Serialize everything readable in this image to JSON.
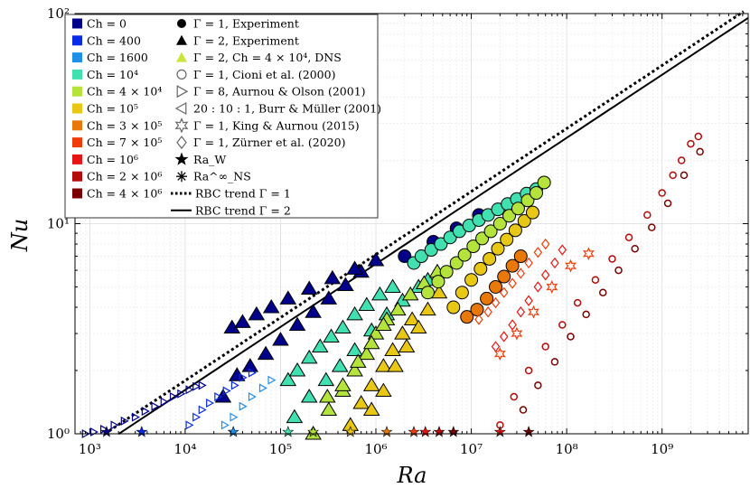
{
  "chart_data": {
    "type": "scatter",
    "xlabel": "Ra",
    "ylabel": "Nu",
    "xscale": "log",
    "yscale": "log",
    "xlim": [
      700,
      8000000000
    ],
    "ylim": [
      1,
      100
    ],
    "x_ticks": [
      1000,
      10000,
      100000,
      1000000,
      10000000,
      100000000,
      1000000000
    ],
    "x_tick_labels": [
      "10³",
      "10⁴",
      "10⁵",
      "10⁶",
      "10⁷",
      "10⁸",
      "10⁹"
    ],
    "y_ticks": [
      1,
      10,
      100
    ],
    "y_tick_labels": [
      "10⁰",
      "10¹",
      "10²"
    ],
    "grid": true,
    "legend_position": "top-left",
    "legend_colors": [
      {
        "label": "Ch = 0",
        "color": "#00008b"
      },
      {
        "label": "Ch = 400",
        "color": "#0a2be6"
      },
      {
        "label": "Ch = 1600",
        "color": "#1e90e8"
      },
      {
        "label": "Ch = 10⁴",
        "color": "#40e0b0"
      },
      {
        "label": "Ch = 4 × 10⁴",
        "color": "#b4e43c"
      },
      {
        "label": "Ch = 10⁵",
        "color": "#e8c814"
      },
      {
        "label": "Ch = 3 × 10⁵",
        "color": "#e8780a"
      },
      {
        "label": "Ch = 7 × 10⁵",
        "color": "#f03c0a"
      },
      {
        "label": "Ch = 10⁶",
        "color": "#e61414"
      },
      {
        "label": "Ch = 2 × 10⁶",
        "color": "#b40a0a"
      },
      {
        "label": "Ch = 4 × 10⁶",
        "color": "#7a0000"
      }
    ],
    "legend_symbols": [
      {
        "label": "Γ = 1, Experiment",
        "marker": "circle-filled"
      },
      {
        "label": "Γ = 2, Experiment",
        "marker": "triangle-filled"
      },
      {
        "label": "Γ = 2, Ch = 4 × 10⁴, DNS",
        "marker": "triangle-yellowgreen"
      },
      {
        "label": "Γ = 1, Cioni et al. (2000)",
        "marker": "circle-open"
      },
      {
        "label": "Γ = 8, Aurnou & Olson (2001)",
        "marker": "triangle-right-open"
      },
      {
        "label": "20 : 10 : 1, Burr & Müller (2001)",
        "marker": "triangle-left-open"
      },
      {
        "label": "Γ = 1, King & Aurnou (2015)",
        "marker": "hexagram-open"
      },
      {
        "label": "Γ = 1, Zürner et al. (2020)",
        "marker": "diamond-open"
      },
      {
        "label": "Ra_W",
        "marker": "star-filled"
      },
      {
        "label": "Ra^∞_NS",
        "marker": "asterisk"
      },
      {
        "label": "RBC trend Γ = 1",
        "marker": "dotted-line"
      },
      {
        "label": "RBC trend Γ = 2",
        "marker": "solid-line"
      }
    ],
    "series": [
      {
        "ci": 0,
        "marker": "tri",
        "size": 8,
        "x": [
          25000,
          35000,
          48000,
          70000,
          100000,
          150000,
          220000,
          320000,
          480000,
          700000
        ],
        "y": [
          1.5,
          1.9,
          2.1,
          2.4,
          2.8,
          3.3,
          3.8,
          4.4,
          5.1,
          5.9
        ]
      },
      {
        "ci": 3,
        "marker": "tri",
        "size": 8,
        "x": [
          140000,
          200000,
          300000,
          420000,
          600000,
          900000,
          1300000,
          1900000,
          2800000,
          3500000
        ],
        "y": [
          1.2,
          1.5,
          1.8,
          2.1,
          2.5,
          3.1,
          3.7,
          4.3,
          5.0,
          5.4
        ]
      },
      {
        "ci": 0,
        "marker": "tri",
        "size": 8,
        "x": [
          31000,
          40000,
          56000,
          80000,
          120000,
          200000,
          350000,
          600000,
          1000000
        ],
        "y": [
          3.2,
          3.4,
          3.7,
          4.0,
          4.4,
          4.9,
          5.5,
          6.1,
          6.7
        ]
      },
      {
        "ci": 3,
        "marker": "tri",
        "size": 8,
        "x": [
          120000,
          150000,
          200000,
          260000,
          340000,
          450000,
          600000,
          800000,
          1100000,
          1500000
        ],
        "y": [
          1.8,
          2.0,
          2.3,
          2.6,
          2.9,
          3.2,
          3.7,
          4.1,
          4.6,
          5.0
        ]
      },
      {
        "ci": 4,
        "marker": "tri",
        "size": 8,
        "x": [
          220000,
          320000,
          450000,
          600000,
          800000,
          1000000,
          1300000
        ],
        "y": [
          1.0,
          1.3,
          1.6,
          2.0,
          2.4,
          3.0,
          3.5
        ]
      },
      {
        "ci": 5,
        "marker": "tri",
        "size": 8,
        "x": [
          540000,
          700000,
          900000,
          1200000,
          1500000,
          1900000,
          2400000
        ],
        "y": [
          1.1,
          1.4,
          1.7,
          2.1,
          2.5,
          3.0,
          3.5
        ]
      },
      {
        "ci": 4,
        "marker": "tri",
        "size": 8,
        "x": [
          310000,
          450000,
          650000,
          900000,
          1200000,
          1700000,
          2300000,
          3200000,
          4400000
        ],
        "y": [
          1.5,
          1.7,
          2.2,
          2.7,
          3.3,
          3.9,
          4.6,
          5.2,
          5.9
        ]
      },
      {
        "ci": 5,
        "marker": "tri",
        "size": 8,
        "x": [
          900000,
          1200000,
          1600000,
          2100000,
          2800000,
          3500000,
          4600000
        ],
        "y": [
          1.3,
          1.6,
          2.1,
          2.6,
          3.2,
          3.9,
          4.7
        ]
      },
      {
        "ci": 0,
        "marker": "circle",
        "size": 7,
        "x": [
          2000000,
          4000000,
          7000000,
          12000000
        ],
        "y": [
          7.0,
          8.2,
          9.5,
          11.0
        ]
      },
      {
        "ci": 3,
        "marker": "circle",
        "size": 7,
        "x": [
          2500000,
          3000000,
          3800000,
          4800000,
          6000000,
          7500000,
          9500000,
          12000000,
          15000000,
          19000000,
          24000000,
          30000000,
          38000000,
          48000000
        ],
        "y": [
          6.5,
          7.0,
          7.5,
          8.0,
          8.6,
          9.2,
          9.8,
          10.4,
          11.0,
          11.7,
          12.4,
          13.1,
          13.9,
          14.6
        ]
      },
      {
        "ci": 4,
        "marker": "circle",
        "size": 7,
        "x": [
          3500000,
          4500000,
          5500000,
          7000000,
          8500000,
          10500000,
          13000000,
          16000000,
          20000000,
          25000000,
          31000000,
          39000000,
          48000000,
          58000000
        ],
        "y": [
          4.7,
          5.3,
          5.9,
          6.5,
          7.1,
          7.8,
          8.5,
          9.2,
          10.0,
          10.9,
          11.8,
          12.9,
          14.0,
          15.7
        ]
      },
      {
        "ci": 5,
        "marker": "circle",
        "size": 7,
        "x": [
          6500000,
          8000000,
          10000000,
          12500000,
          15500000,
          19000000,
          23500000,
          29000000,
          36000000,
          44000000
        ],
        "y": [
          4.0,
          4.7,
          5.4,
          6.1,
          6.8,
          7.6,
          8.4,
          9.3,
          10.3,
          11.3
        ]
      },
      {
        "ci": 6,
        "marker": "circle",
        "size": 7,
        "x": [
          9000000,
          11500000,
          14500000,
          18000000,
          22000000,
          27000000,
          33000000
        ],
        "y": [
          3.6,
          3.9,
          4.4,
          5.0,
          5.6,
          6.3,
          7.0
        ]
      },
      {
        "ci": 0,
        "marker": "tri-r",
        "size": 4,
        "x": [
          900,
          1100,
          1400,
          1800,
          2300,
          3000,
          3800,
          4800,
          6000,
          7500,
          9000,
          11000,
          13000,
          15000
        ],
        "y": [
          1.0,
          1.02,
          1.05,
          1.1,
          1.15,
          1.2,
          1.28,
          1.35,
          1.42,
          1.5,
          1.55,
          1.62,
          1.68,
          1.7
        ]
      },
      {
        "ci": 1,
        "marker": "tri-r",
        "size": 4,
        "x": [
          11000,
          13000,
          15000,
          18000,
          22000,
          27000,
          33000,
          40000,
          50000
        ],
        "y": [
          1.1,
          1.2,
          1.3,
          1.4,
          1.5,
          1.6,
          1.7,
          1.85,
          1.95
        ]
      },
      {
        "ci": 2,
        "marker": "tri-r",
        "size": 4,
        "x": [
          26000,
          32000,
          40000,
          50000,
          65000,
          80000
        ],
        "y": [
          1.1,
          1.2,
          1.35,
          1.5,
          1.65,
          1.8
        ]
      },
      {
        "ci": 7,
        "marker": "diamond",
        "size": 4,
        "x": [
          12000000,
          15000000,
          18000000,
          22000000,
          27000000,
          33000000,
          40000000,
          50000000,
          60000000
        ],
        "y": [
          3.5,
          3.8,
          4.2,
          4.7,
          5.2,
          5.8,
          6.5,
          7.3,
          8.0
        ]
      },
      {
        "ci": 8,
        "marker": "diamond",
        "size": 4,
        "x": [
          18000000,
          22000000,
          27000000,
          33000000,
          40000000,
          50000000,
          60000000,
          75000000,
          90000000
        ],
        "y": [
          2.6,
          2.9,
          3.3,
          3.8,
          4.3,
          5.0,
          5.7,
          6.5,
          7.5
        ]
      },
      {
        "ci": 7,
        "marker": "hex",
        "size": 5,
        "x": [
          20000000,
          30000000,
          45000000,
          70000000,
          110000000,
          170000000
        ],
        "y": [
          2.4,
          3.0,
          3.8,
          5.0,
          6.3,
          7.2
        ]
      },
      {
        "ci": 9,
        "marker": "circle-open",
        "size": 3.5,
        "x": [
          20000000,
          28000000,
          40000000,
          60000000,
          90000000,
          130000000,
          200000000,
          300000000,
          450000000,
          700000000,
          1000000000,
          1300000000,
          1600000000,
          2000000000,
          2400000000
        ],
        "y": [
          1.1,
          1.5,
          2.0,
          2.6,
          3.3,
          4.2,
          5.4,
          6.8,
          8.6,
          11,
          14,
          17,
          20,
          24,
          26
        ]
      },
      {
        "ci": 10,
        "marker": "circle-open",
        "size": 3.5,
        "x": [
          35000000,
          50000000,
          75000000,
          110000000,
          160000000,
          240000000,
          350000000,
          520000000,
          780000000,
          1150000000,
          1700000000,
          2500000000
        ],
        "y": [
          1.3,
          1.7,
          2.2,
          2.9,
          3.7,
          4.7,
          6.0,
          7.6,
          9.6,
          12.5,
          17,
          22
        ]
      }
    ],
    "rbc_trends": [
      {
        "label": "RBC trend Γ = 1",
        "style": "dotted",
        "prefactor": 0.113,
        "exponent": 0.3,
        "x_start": 1600
      },
      {
        "label": "RBC trend Γ = 2",
        "style": "solid",
        "prefactor": 0.102,
        "exponent": 0.3,
        "x_start": 2000
      }
    ],
    "ra_w_markers": [
      {
        "x": 1500,
        "ci": 0
      },
      {
        "x": 3500,
        "ci": 1
      },
      {
        "x": 32000,
        "ci": 2
      },
      {
        "x": 120000,
        "ci": 3
      },
      {
        "x": 220000,
        "ci": 4
      },
      {
        "x": 540000,
        "ci": 5
      },
      {
        "x": 1300000,
        "ci": 6
      },
      {
        "x": 2500000,
        "ci": 7
      },
      {
        "x": 3300000,
        "ci": 8
      },
      {
        "x": 4600000,
        "ci": 9
      },
      {
        "x": 6500000,
        "ci": 10
      },
      {
        "x": 20000000,
        "ci": 8
      },
      {
        "x": 40000000,
        "ci": 10
      }
    ]
  }
}
